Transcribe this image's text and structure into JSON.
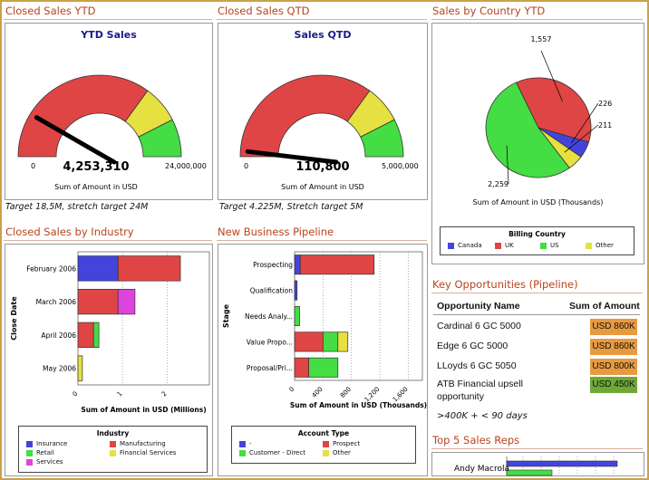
{
  "sections": {
    "closed_ytd": "Closed Sales YTD",
    "closed_qtd": "Closed Sales QTD",
    "by_country": "Sales by Country YTD",
    "by_industry": "Closed Sales by Industry",
    "pipeline": "New Business Pipeline",
    "key_opps": "Key Opportunities (Pipeline)",
    "top_reps": "Top 5 Sales Reps"
  },
  "colors": {
    "red": "#e04545",
    "yellow": "#e6e040",
    "green": "#44dd44",
    "blue": "#4444dd",
    "magenta": "#dd44dd",
    "orange": "#e89a40",
    "olive": "#6fa838"
  },
  "gauge_ytd": {
    "title": "YTD Sales",
    "min_label": "0",
    "max_label": "24,000,000",
    "value_label": "4,253,310",
    "value": 4253310,
    "max": 24000000,
    "zones": [
      {
        "from": 0,
        "to": 0.7,
        "color": "red"
      },
      {
        "from": 0.7,
        "to": 0.85,
        "color": "yellow"
      },
      {
        "from": 0.85,
        "to": 1,
        "color": "green"
      }
    ],
    "axis_label": "Sum of Amount in USD",
    "caption": "Target 18,5M, stretch target 24M"
  },
  "gauge_qtd": {
    "title": "Sales QTD",
    "min_label": "0",
    "max_label": "5,000,000",
    "value_label": "110,800",
    "value": 110800,
    "max": 5000000,
    "zones": [
      {
        "from": 0,
        "to": 0.7,
        "color": "red"
      },
      {
        "from": 0.7,
        "to": 0.85,
        "color": "yellow"
      },
      {
        "from": 0.85,
        "to": 1,
        "color": "green"
      }
    ],
    "axis_label": "Sum of Amount in USD",
    "caption": "Target 4.225M, Stretch target 5M"
  },
  "country_pie": {
    "slices": [
      {
        "label": "1,557",
        "value": 1557,
        "color": "red"
      },
      {
        "label": "226",
        "value": 226,
        "color": "blue"
      },
      {
        "label": "211",
        "value": 211,
        "color": "yellow"
      },
      {
        "label": "2,259",
        "value": 2259,
        "color": "green"
      }
    ],
    "axis_label": "Sum of Amount in USD (Thousands)",
    "legend_title": "Billing Country",
    "legend": [
      {
        "label": "Canada",
        "color": "blue"
      },
      {
        "label": "UK",
        "color": "red"
      },
      {
        "label": "US",
        "color": "green"
      },
      {
        "label": "Other",
        "color": "yellow"
      }
    ]
  },
  "chart_data": [
    {
      "type": "bar",
      "orientation": "horizontal",
      "stacked": true,
      "ylabel": "Close Date",
      "xlabel": "Sum of Amount in USD (Millions)",
      "categories": [
        "February 2006",
        "March 2006",
        "April 2006",
        "May 2006"
      ],
      "xticks": [
        "0",
        "1",
        "2"
      ],
      "xlim": [
        0,
        2.95
      ],
      "series": [
        {
          "name": "Insurance",
          "color": "blue",
          "values": [
            0.9,
            0,
            0,
            0
          ]
        },
        {
          "name": "Manufacturing",
          "color": "red",
          "values": [
            1.4,
            0.9,
            0.35,
            0
          ]
        },
        {
          "name": "Retail",
          "color": "green",
          "values": [
            0,
            0,
            0.12,
            0
          ]
        },
        {
          "name": "Financial Services",
          "color": "yellow",
          "values": [
            0,
            0,
            0,
            0.1
          ]
        },
        {
          "name": "Services",
          "color": "magenta",
          "values": [
            0,
            0.38,
            0,
            0
          ]
        }
      ],
      "legend_title": "Industry"
    },
    {
      "type": "bar",
      "orientation": "horizontal",
      "stacked": true,
      "ylabel": "Stage",
      "xlabel": "Sum of Amount in USD (Thousands)",
      "categories": [
        "Prospecting",
        "Qualification",
        "Needs Analy...",
        "Value Propo...",
        "Proposal/Pri..."
      ],
      "xticks": [
        "0",
        "400",
        "800",
        "1,200",
        "1,600"
      ],
      "xlim": [
        0,
        1800
      ],
      "series": [
        {
          "name": "-",
          "color": "blue",
          "values": [
            80,
            35,
            0,
            0,
            0
          ]
        },
        {
          "name": "Prospect",
          "color": "red",
          "values": [
            1040,
            0,
            0,
            400,
            200
          ]
        },
        {
          "name": "Customer - Direct",
          "color": "green",
          "values": [
            0,
            0,
            70,
            210,
            410
          ]
        },
        {
          "name": "Other",
          "color": "yellow",
          "values": [
            0,
            0,
            0,
            140,
            0
          ]
        }
      ],
      "legend_title": "Account Type"
    }
  ],
  "key_opps": {
    "col_name": "Opportunity Name",
    "col_amount": "Sum of Amount",
    "rows": [
      {
        "name": "Cardinal 6 GC 5000",
        "amount": "USD 860K",
        "color": "orange"
      },
      {
        "name": "Edge 6 GC 5000",
        "amount": "USD 860K",
        "color": "orange"
      },
      {
        "name": "LLoyds 6 GC 5050",
        "amount": "USD 800K",
        "color": "orange"
      },
      {
        "name": "ATB Financial upsell",
        "name2": "opportunity",
        "amount": "USD 450K",
        "color": "olive"
      }
    ],
    "footnote": ">400K + < 90 days"
  },
  "top_reps": {
    "first_rep": "Andy Macrola"
  }
}
